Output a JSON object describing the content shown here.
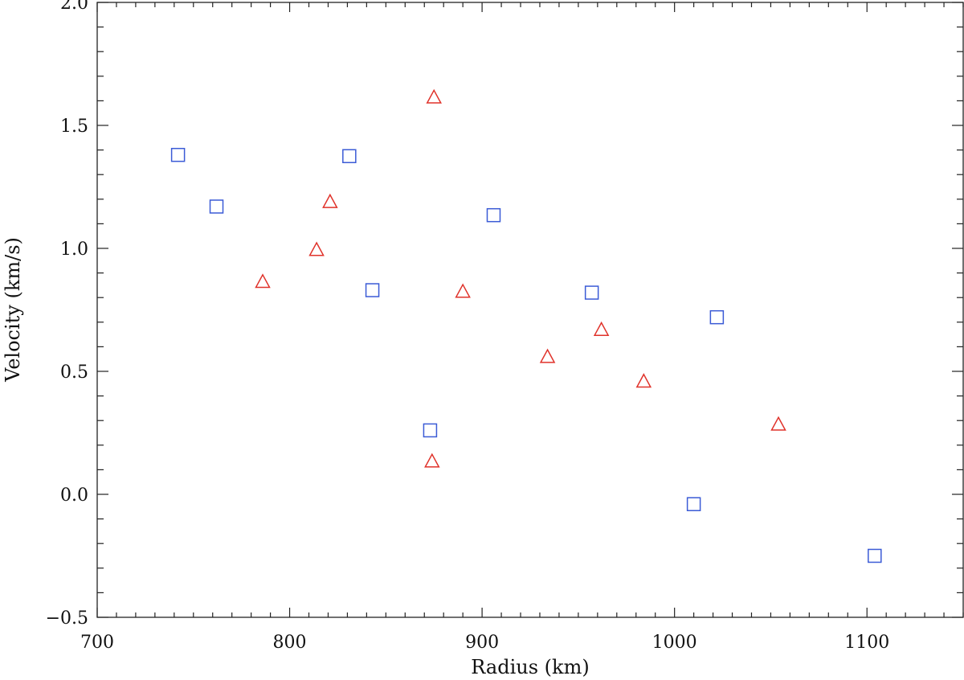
{
  "chart_data": {
    "type": "scatter",
    "title": "",
    "xlabel": "Radius (km)",
    "ylabel": "Velocity (km/s)",
    "xlim": [
      700,
      1150
    ],
    "ylim": [
      -0.5,
      2.0
    ],
    "grid": false,
    "x_ticks": [
      700,
      800,
      900,
      1000,
      1100
    ],
    "x_tick_labels": [
      "700",
      "800",
      "900",
      "1000",
      "1100"
    ],
    "x_minor_step": 10,
    "y_ticks": [
      -0.5,
      0.0,
      0.5,
      1.0,
      1.5,
      2.0
    ],
    "y_tick_labels": [
      "−0.5",
      "0.0",
      "0.5",
      "1.0",
      "1.5",
      "2.0"
    ],
    "y_minor_step": 0.1,
    "series": [
      {
        "marker": "square",
        "color": "#3b5bd6",
        "points": [
          {
            "x": 742,
            "y": 1.38
          },
          {
            "x": 762,
            "y": 1.17
          },
          {
            "x": 831,
            "y": 1.375
          },
          {
            "x": 843,
            "y": 0.83
          },
          {
            "x": 873,
            "y": 0.26
          },
          {
            "x": 906,
            "y": 1.135
          },
          {
            "x": 957,
            "y": 0.82
          },
          {
            "x": 1010,
            "y": -0.04
          },
          {
            "x": 1022,
            "y": 0.72
          },
          {
            "x": 1104,
            "y": -0.25
          }
        ]
      },
      {
        "marker": "triangle",
        "color": "#e0322a",
        "points": [
          {
            "x": 786,
            "y": 0.865
          },
          {
            "x": 814,
            "y": 0.995
          },
          {
            "x": 821,
            "y": 1.19
          },
          {
            "x": 874,
            "y": 0.135
          },
          {
            "x": 875,
            "y": 1.615
          },
          {
            "x": 890,
            "y": 0.825
          },
          {
            "x": 934,
            "y": 0.56
          },
          {
            "x": 962,
            "y": 0.67
          },
          {
            "x": 984,
            "y": 0.46
          },
          {
            "x": 1054,
            "y": 0.285
          }
        ]
      }
    ]
  }
}
